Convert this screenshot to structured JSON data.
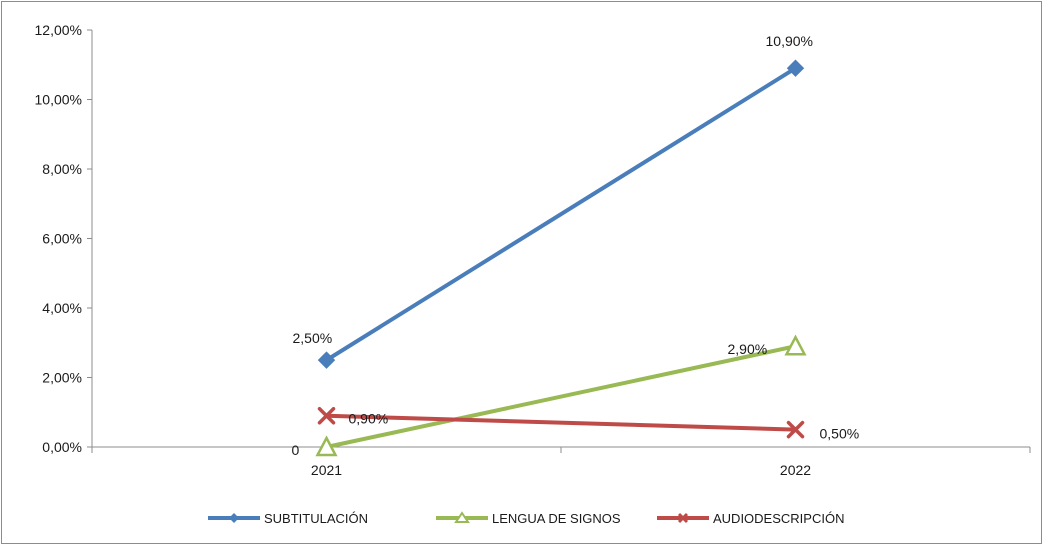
{
  "chart_data": {
    "type": "line",
    "title": "",
    "xlabel": "",
    "ylabel": "",
    "categories": [
      "2021",
      "2022"
    ],
    "y_ticks": [
      "0,00%",
      "2,00%",
      "4,00%",
      "6,00%",
      "8,00%",
      "10,00%",
      "12,00%"
    ],
    "ylim": [
      0,
      12
    ],
    "grid": false,
    "legend_position": "bottom",
    "series": [
      {
        "name": "SUBTITULACIÓN",
        "values": [
          2.5,
          10.9
        ],
        "labels": [
          "2,50%",
          "10,90%"
        ],
        "color": "#4a7ebb",
        "marker": "diamond"
      },
      {
        "name": "LENGUA DE SIGNOS",
        "values": [
          0,
          2.9
        ],
        "labels": [
          "0",
          "2,90%"
        ],
        "color": "#98b954",
        "marker": "triangle"
      },
      {
        "name": "AUDIODESCRIPCIÓN",
        "values": [
          0.9,
          0.5
        ],
        "labels": [
          "0,90%",
          "0,50%"
        ],
        "color": "#be4b48",
        "marker": "x"
      }
    ]
  }
}
